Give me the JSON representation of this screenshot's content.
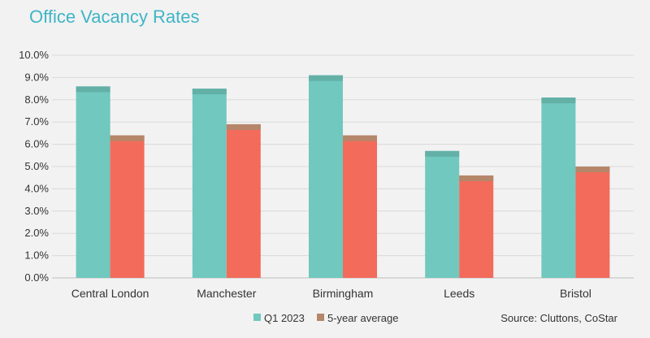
{
  "chart_data": {
    "type": "bar",
    "title": "Office Vacancy Rates",
    "categories": [
      "Central London",
      "Manchester",
      "Birmingham",
      "Leeds",
      "Bristol"
    ],
    "series": [
      {
        "name": "Q1 2023",
        "values": [
          8.6,
          8.5,
          9.1,
          5.7,
          8.1
        ],
        "color": "#70c8be"
      },
      {
        "name": "5-year average",
        "values": [
          6.4,
          6.9,
          6.4,
          4.6,
          5.0
        ],
        "color": "#f26b5b",
        "legend_color": "#b5866a"
      }
    ],
    "ylim": [
      0,
      10
    ],
    "yticks": [
      0,
      1,
      2,
      3,
      4,
      5,
      6,
      7,
      8,
      9,
      10
    ],
    "ytick_labels": [
      "0.0%",
      "1.0%",
      "2.0%",
      "3.0%",
      "4.0%",
      "5.0%",
      "6.0%",
      "7.0%",
      "8.0%",
      "9.0%",
      "10.0%"
    ],
    "grid": true,
    "legend_position": "bottom",
    "source": "Source: Cluttons, CoStar",
    "colors": {
      "grid": "#d9d9d9",
      "axis": "#bfbfbf",
      "bar_cap": "#b5866a",
      "title": "#3fb5c6"
    }
  }
}
